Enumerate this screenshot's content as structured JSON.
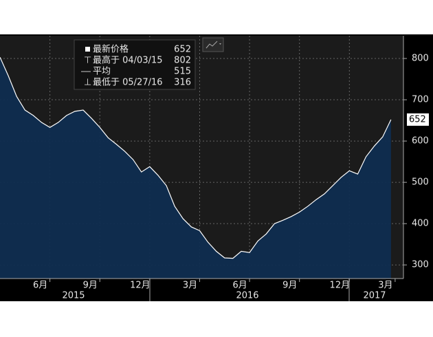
{
  "chart_data": {
    "type": "area",
    "legend": [
      {
        "label": "最新价格",
        "value": 652
      },
      {
        "label": "最高于 04/03/15",
        "value": 802
      },
      {
        "label": "平均",
        "value": 515
      },
      {
        "label": "最低于 05/27/16",
        "value": 316
      }
    ],
    "series": [
      {
        "color": "#ffffff",
        "fill": "#0f2d50",
        "values": [
          803,
          758,
          708,
          675,
          662,
          645,
          633,
          645,
          662,
          672,
          675,
          655,
          633,
          608,
          592,
          575,
          555,
          525,
          538,
          517,
          492,
          442,
          412,
          392,
          383,
          355,
          333,
          317,
          316,
          333,
          330,
          358,
          375,
          400,
          408,
          417,
          428,
          442,
          458,
          472,
          492,
          512,
          528,
          520,
          562,
          588,
          610,
          652
        ]
      }
    ],
    "xlim": [
      0,
      48.5
    ],
    "xticks": [
      {
        "value": 6,
        "label": "6月"
      },
      {
        "value": 12,
        "label": "9月"
      },
      {
        "value": 18,
        "label": "12月"
      },
      {
        "value": 24,
        "label": "3月"
      },
      {
        "value": 30,
        "label": "6月"
      },
      {
        "value": 36,
        "label": "9月"
      },
      {
        "value": 42,
        "label": "12月"
      },
      {
        "value": 47.5,
        "label": "3月"
      }
    ],
    "years": [
      "2015",
      "2016",
      "2017"
    ],
    "ylim": [
      267,
      855
    ],
    "yticks": [
      300,
      400,
      500,
      600,
      700,
      800
    ],
    "grid": true
  }
}
